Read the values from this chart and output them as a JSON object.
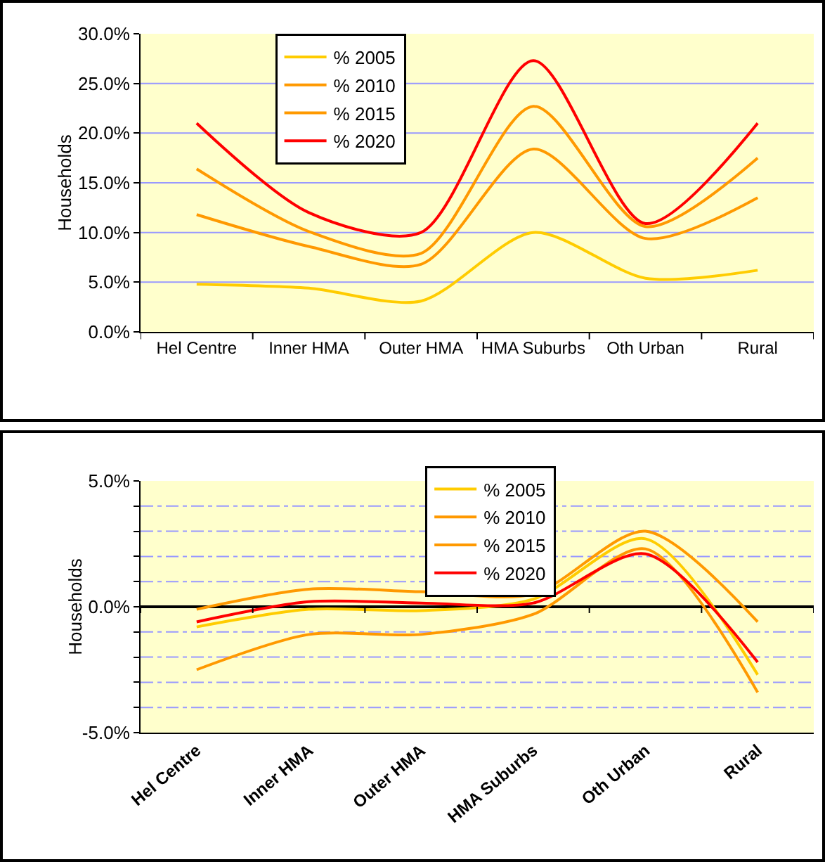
{
  "chart_data": [
    {
      "type": "line",
      "ylabel": "Households",
      "categories": [
        "Hel Centre",
        "Inner HMA",
        "Outer HMA",
        "HMA Suburbs",
        "Oth Urban",
        "Rural"
      ],
      "series": [
        {
          "name": "% 2005",
          "color": "#ffcc00",
          "values": [
            4.8,
            4.4,
            3.1,
            10.0,
            5.4,
            6.2
          ]
        },
        {
          "name": "% 2010",
          "color": "#ff9900",
          "values": [
            11.8,
            8.6,
            6.8,
            18.4,
            9.4,
            13.5
          ]
        },
        {
          "name": "% 2015",
          "color": "#ff9900",
          "values": [
            16.4,
            10.1,
            7.9,
            22.7,
            10.6,
            17.5
          ]
        },
        {
          "name": "% 2020",
          "color": "#ff0000",
          "values": [
            21.0,
            12.0,
            10.0,
            27.3,
            10.9,
            21.0
          ]
        }
      ],
      "ylim": [
        0,
        30
      ],
      "yticks": [
        {
          "value": 0,
          "label": "0.0%"
        },
        {
          "value": 5,
          "label": "5.0%"
        },
        {
          "value": 10,
          "label": "10.0%"
        },
        {
          "value": 15,
          "label": "15.0%"
        },
        {
          "value": 20,
          "label": "20.0%"
        },
        {
          "value": 25,
          "label": "25.0%"
        },
        {
          "value": 30,
          "label": "30.0%"
        }
      ],
      "grid": "y",
      "legend": "top left",
      "line_style": "solid",
      "marker": "none"
    },
    {
      "type": "line",
      "ylabel": "Households",
      "categories": [
        "Hel Centre",
        "Inner HMA",
        "Outer HMA",
        "HMA Suburbs",
        "Oth Urban",
        "Rural"
      ],
      "series": [
        {
          "name": "% 2005",
          "color": "#ffcc00",
          "values": [
            -0.8,
            -0.1,
            -0.15,
            0.3,
            2.7,
            -2.7
          ]
        },
        {
          "name": "% 2010",
          "color": "#ff9900",
          "values": [
            -2.5,
            -1.1,
            -1.1,
            -0.3,
            2.3,
            -3.4
          ]
        },
        {
          "name": "% 2015",
          "color": "#ff9900",
          "values": [
            -0.1,
            0.7,
            0.6,
            0.5,
            3.0,
            -0.6
          ]
        },
        {
          "name": "% 2020",
          "color": "#ff0000",
          "values": [
            -0.6,
            0.2,
            0.15,
            0.15,
            2.1,
            -2.2
          ]
        }
      ],
      "ylim": [
        -5,
        5
      ],
      "yticks": [
        {
          "value": -5,
          "label": "-5.0%"
        },
        {
          "value": -4,
          "label": null
        },
        {
          "value": -3,
          "label": null
        },
        {
          "value": -2,
          "label": null
        },
        {
          "value": -1,
          "label": null
        },
        {
          "value": 0,
          "label": "0.0%"
        },
        {
          "value": 1,
          "label": null
        },
        {
          "value": 2,
          "label": null
        },
        {
          "value": 3,
          "label": null
        },
        {
          "value": 4,
          "label": null
        },
        {
          "value": 5,
          "label": "5.0%"
        }
      ],
      "grid": "y",
      "legend": "top",
      "line_style": "solid",
      "marker": "none"
    }
  ]
}
